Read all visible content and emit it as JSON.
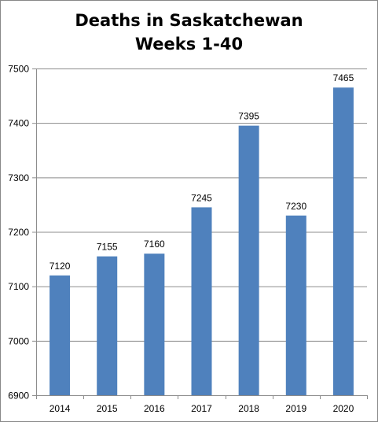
{
  "chart_data": {
    "type": "bar",
    "title_lines": [
      "Deaths in Saskatchewan",
      "Weeks 1-40"
    ],
    "categories": [
      "2014",
      "2015",
      "2016",
      "2017",
      "2018",
      "2019",
      "2020"
    ],
    "values": [
      7120,
      7155,
      7160,
      7245,
      7395,
      7230,
      7465
    ],
    "data_labels": [
      "7120",
      "7155",
      "7160",
      "7245",
      "7395",
      "7230",
      "7465"
    ],
    "yticks": [
      6900,
      7000,
      7100,
      7200,
      7300,
      7400,
      7500
    ],
    "ytick_labels": [
      "6900",
      "7000",
      "7100",
      "7200",
      "7300",
      "7400",
      "7500"
    ],
    "ylim": [
      6900,
      7500
    ],
    "xlabel": "",
    "ylabel": "",
    "grid": true,
    "legend": "none",
    "bar_color": "#4f81bd",
    "grid_color": "#8c8c8c"
  }
}
